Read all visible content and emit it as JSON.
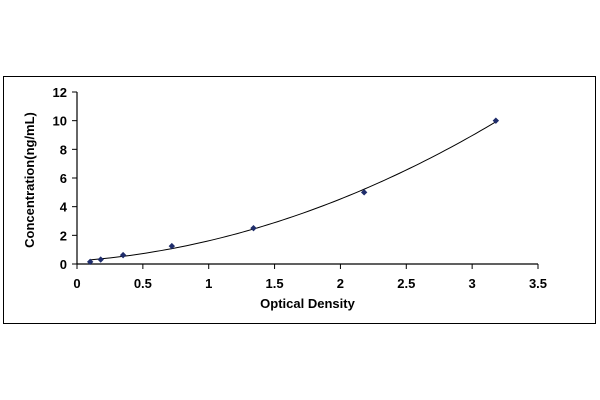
{
  "chart_data": {
    "type": "scatter",
    "title": "",
    "xlabel": "Optical Density",
    "ylabel": "Concentration(ng/mL)",
    "xlim": [
      0,
      3.5
    ],
    "ylim": [
      0,
      12
    ],
    "x_ticks": [
      "0",
      "0.5",
      "1",
      "1.5",
      "2",
      "2.5",
      "3",
      "3.5"
    ],
    "y_ticks": [
      "0",
      "2",
      "4",
      "6",
      "8",
      "10",
      "12"
    ],
    "grid": false,
    "legend": "none",
    "series": [
      {
        "x": [
          0.1,
          0.18,
          0.35,
          0.72,
          1.34,
          2.18,
          3.18
        ],
        "y": [
          0.15,
          0.31,
          0.62,
          1.25,
          2.5,
          5,
          10
        ],
        "marker": "diamond",
        "trendline": "polynomial"
      }
    ],
    "colors": {
      "marker": "#1f2d6b",
      "curve": "#000000",
      "axis": "#000000"
    }
  }
}
